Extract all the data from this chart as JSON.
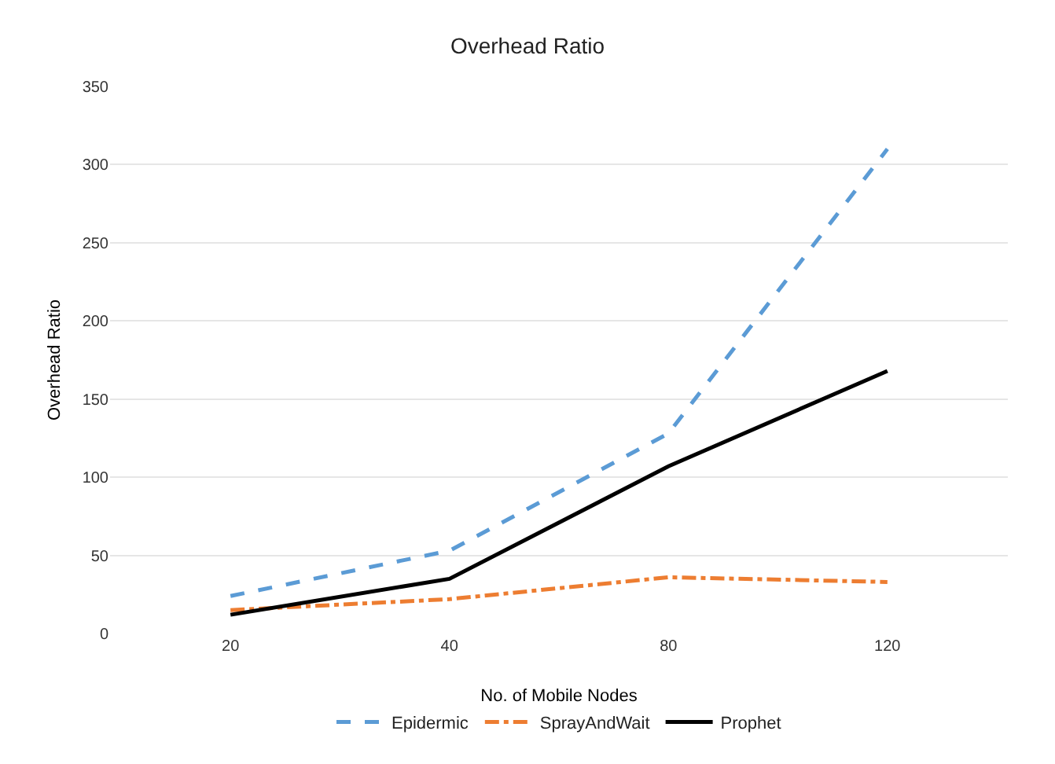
{
  "chart_data": {
    "type": "line",
    "title": "Overhead Ratio",
    "xlabel": "No. of Mobile Nodes",
    "ylabel": "Overhead Ratio",
    "categories": [
      "20",
      "40",
      "80",
      "120"
    ],
    "series": [
      {
        "name": "Epidermic",
        "color": "#5b9bd5",
        "line_style": "dashed",
        "values": [
          24,
          53,
          128,
          310
        ]
      },
      {
        "name": "SprayAndWait",
        "color": "#ed7d31",
        "line_style": "dashdot",
        "values": [
          15,
          22,
          36,
          33
        ]
      },
      {
        "name": "Prophet",
        "color": "#000000",
        "line_style": "solid",
        "values": [
          12,
          35,
          107,
          168
        ]
      }
    ],
    "ylim": [
      0,
      350
    ],
    "yticks": [
      0,
      50,
      100,
      150,
      200,
      250,
      300,
      350
    ],
    "grid": "y",
    "legend": "bottom",
    "marker": "none"
  }
}
